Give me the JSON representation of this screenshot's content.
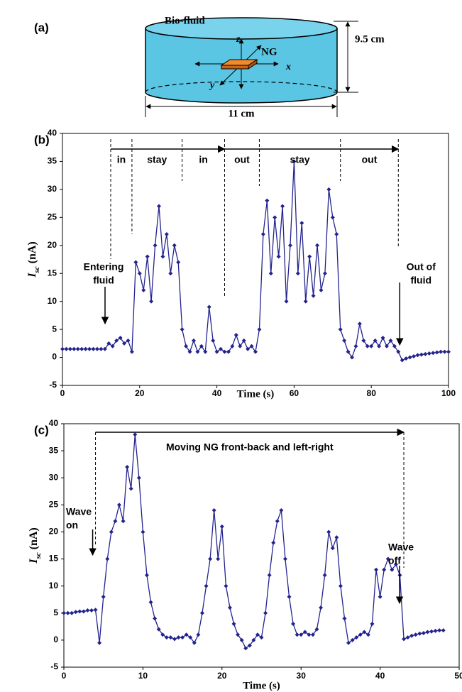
{
  "diagram": {
    "panel_label": "(a)",
    "fluid_label": "Bio-fluid",
    "axis_z": "z",
    "device": "NG",
    "axis_x": "x",
    "axis_y": "y",
    "height_label": "9.5 cm",
    "width_label": "11 cm"
  },
  "chart_data": [
    {
      "type": "line",
      "panel_label": "(b)",
      "x_label": "Time (s)",
      "y_label": {
        "symbol": "I",
        "subscript": "sc",
        "unit": "(nA)"
      },
      "x": [
        0,
        1,
        2,
        3,
        4,
        5,
        6,
        7,
        8,
        9,
        10,
        11,
        12,
        13,
        14,
        15,
        16,
        17,
        18,
        19,
        20,
        21,
        22,
        23,
        24,
        25,
        26,
        27,
        28,
        29,
        30,
        31,
        32,
        33,
        34,
        35,
        36,
        37,
        38,
        39,
        40,
        41,
        42,
        43,
        44,
        45,
        46,
        47,
        48,
        49,
        50,
        51,
        52,
        53,
        54,
        55,
        56,
        57,
        58,
        59,
        60,
        61,
        62,
        63,
        64,
        65,
        66,
        67,
        68,
        69,
        70,
        71,
        72,
        73,
        74,
        75,
        76,
        77,
        78,
        79,
        80,
        81,
        82,
        83,
        84,
        85,
        86,
        87,
        88,
        89,
        90,
        91,
        92,
        93,
        94,
        95,
        96,
        97,
        98,
        99,
        100
      ],
      "series": [
        {
          "color": "#23238e",
          "values": [
            1.5,
            1.5,
            1.5,
            1.5,
            1.5,
            1.5,
            1.5,
            1.5,
            1.5,
            1.5,
            1.5,
            1.5,
            2.5,
            2,
            3,
            3.5,
            2.5,
            3,
            1,
            17,
            15,
            12,
            18,
            10,
            20,
            27,
            18,
            22,
            15,
            20,
            17,
            5,
            2,
            1,
            3,
            1,
            2,
            1,
            9,
            3,
            1,
            1.5,
            1,
            1,
            2,
            4,
            2,
            3,
            1.5,
            2,
            1,
            5,
            22,
            28,
            15,
            25,
            18,
            27,
            10,
            20,
            35,
            15,
            24,
            10,
            18,
            11,
            20,
            12,
            15,
            30,
            25,
            22,
            5,
            3,
            1,
            0,
            2,
            6,
            3,
            2,
            2,
            3,
            2,
            3.5,
            2,
            3,
            2,
            1,
            -0.5,
            -0.2,
            0,
            0.2,
            0.4,
            0.5,
            0.6,
            0.7,
            0.8,
            0.9,
            1,
            1,
            1
          ]
        }
      ],
      "xlim": [
        0,
        100
      ],
      "ylim": [
        -5,
        40
      ],
      "xticks": [
        0,
        20,
        40,
        60,
        80,
        100
      ],
      "yticks": [
        -5,
        0,
        5,
        10,
        15,
        20,
        25,
        30,
        35,
        40
      ],
      "markers": [
        12.5,
        18,
        31,
        42,
        51,
        72,
        87
      ],
      "phases": [
        "in",
        "stay",
        "in",
        "out",
        "stay",
        "out"
      ],
      "annotations": [
        [
          "Entering",
          "fluid"
        ],
        [
          "Out of",
          "fluid"
        ]
      ]
    },
    {
      "type": "line",
      "panel_label": "(c)",
      "x_label": "Time (s)",
      "y_label": {
        "symbol": "I",
        "subscript": "sc",
        "unit": "(nA)"
      },
      "x": [
        0,
        0.5,
        1,
        1.5,
        2,
        2.5,
        3,
        3.5,
        4,
        4.5,
        5,
        5.5,
        6,
        6.5,
        7,
        7.5,
        8,
        8.5,
        9,
        9.5,
        10,
        10.5,
        11,
        11.5,
        12,
        12.5,
        13,
        13.5,
        14,
        14.5,
        15,
        15.5,
        16,
        16.5,
        17,
        17.5,
        18,
        18.5,
        19,
        19.5,
        20,
        20.5,
        21,
        21.5,
        22,
        22.5,
        23,
        23.5,
        24,
        24.5,
        25,
        25.5,
        26,
        26.5,
        27,
        27.5,
        28,
        28.5,
        29,
        29.5,
        30,
        30.5,
        31,
        31.5,
        32,
        32.5,
        33,
        33.5,
        34,
        34.5,
        35,
        35.5,
        36,
        36.5,
        37,
        37.5,
        38,
        38.5,
        39,
        39.5,
        40,
        40.5,
        41,
        41.5,
        42,
        42.5,
        43,
        43.5,
        44,
        44.5,
        45,
        45.5,
        46,
        46.5,
        47,
        47.5,
        48
      ],
      "series": [
        {
          "color": "#23238e",
          "values": [
            5,
            5,
            5,
            5.2,
            5.3,
            5.3,
            5.5,
            5.5,
            5.6,
            -0.5,
            8,
            15,
            20,
            22,
            25,
            22,
            32,
            28,
            38,
            30,
            20,
            12,
            7,
            4,
            2,
            1,
            0.5,
            0.5,
            0.2,
            0.5,
            0.5,
            1,
            0.5,
            -0.5,
            1,
            5,
            10,
            15,
            24,
            15,
            21,
            10,
            6,
            3,
            1,
            0,
            -1.5,
            -1,
            0,
            1,
            0.5,
            5,
            12,
            18,
            22,
            24,
            15,
            8,
            3,
            1,
            1,
            1.5,
            1,
            1,
            2,
            6,
            12,
            20,
            17,
            19,
            10,
            4,
            -0.5,
            0,
            0.5,
            1,
            1.5,
            1,
            3,
            13,
            8,
            13,
            15,
            13,
            14,
            12,
            0.2,
            0.5,
            0.8,
            1,
            1.2,
            1.3,
            1.5,
            1.6,
            1.7,
            1.8,
            1.8
          ]
        }
      ],
      "xlim": [
        0,
        50
      ],
      "ylim": [
        -5,
        40
      ],
      "xticks": [
        0,
        10,
        20,
        30,
        40,
        50
      ],
      "yticks": [
        -5,
        0,
        5,
        10,
        15,
        20,
        25,
        30,
        35,
        40
      ],
      "markers": [
        4,
        43
      ],
      "arrow_label": "Moving NG front-back and left-right",
      "annotations": [
        [
          "Wave",
          "on"
        ],
        [
          "Wave",
          "off"
        ]
      ]
    }
  ]
}
